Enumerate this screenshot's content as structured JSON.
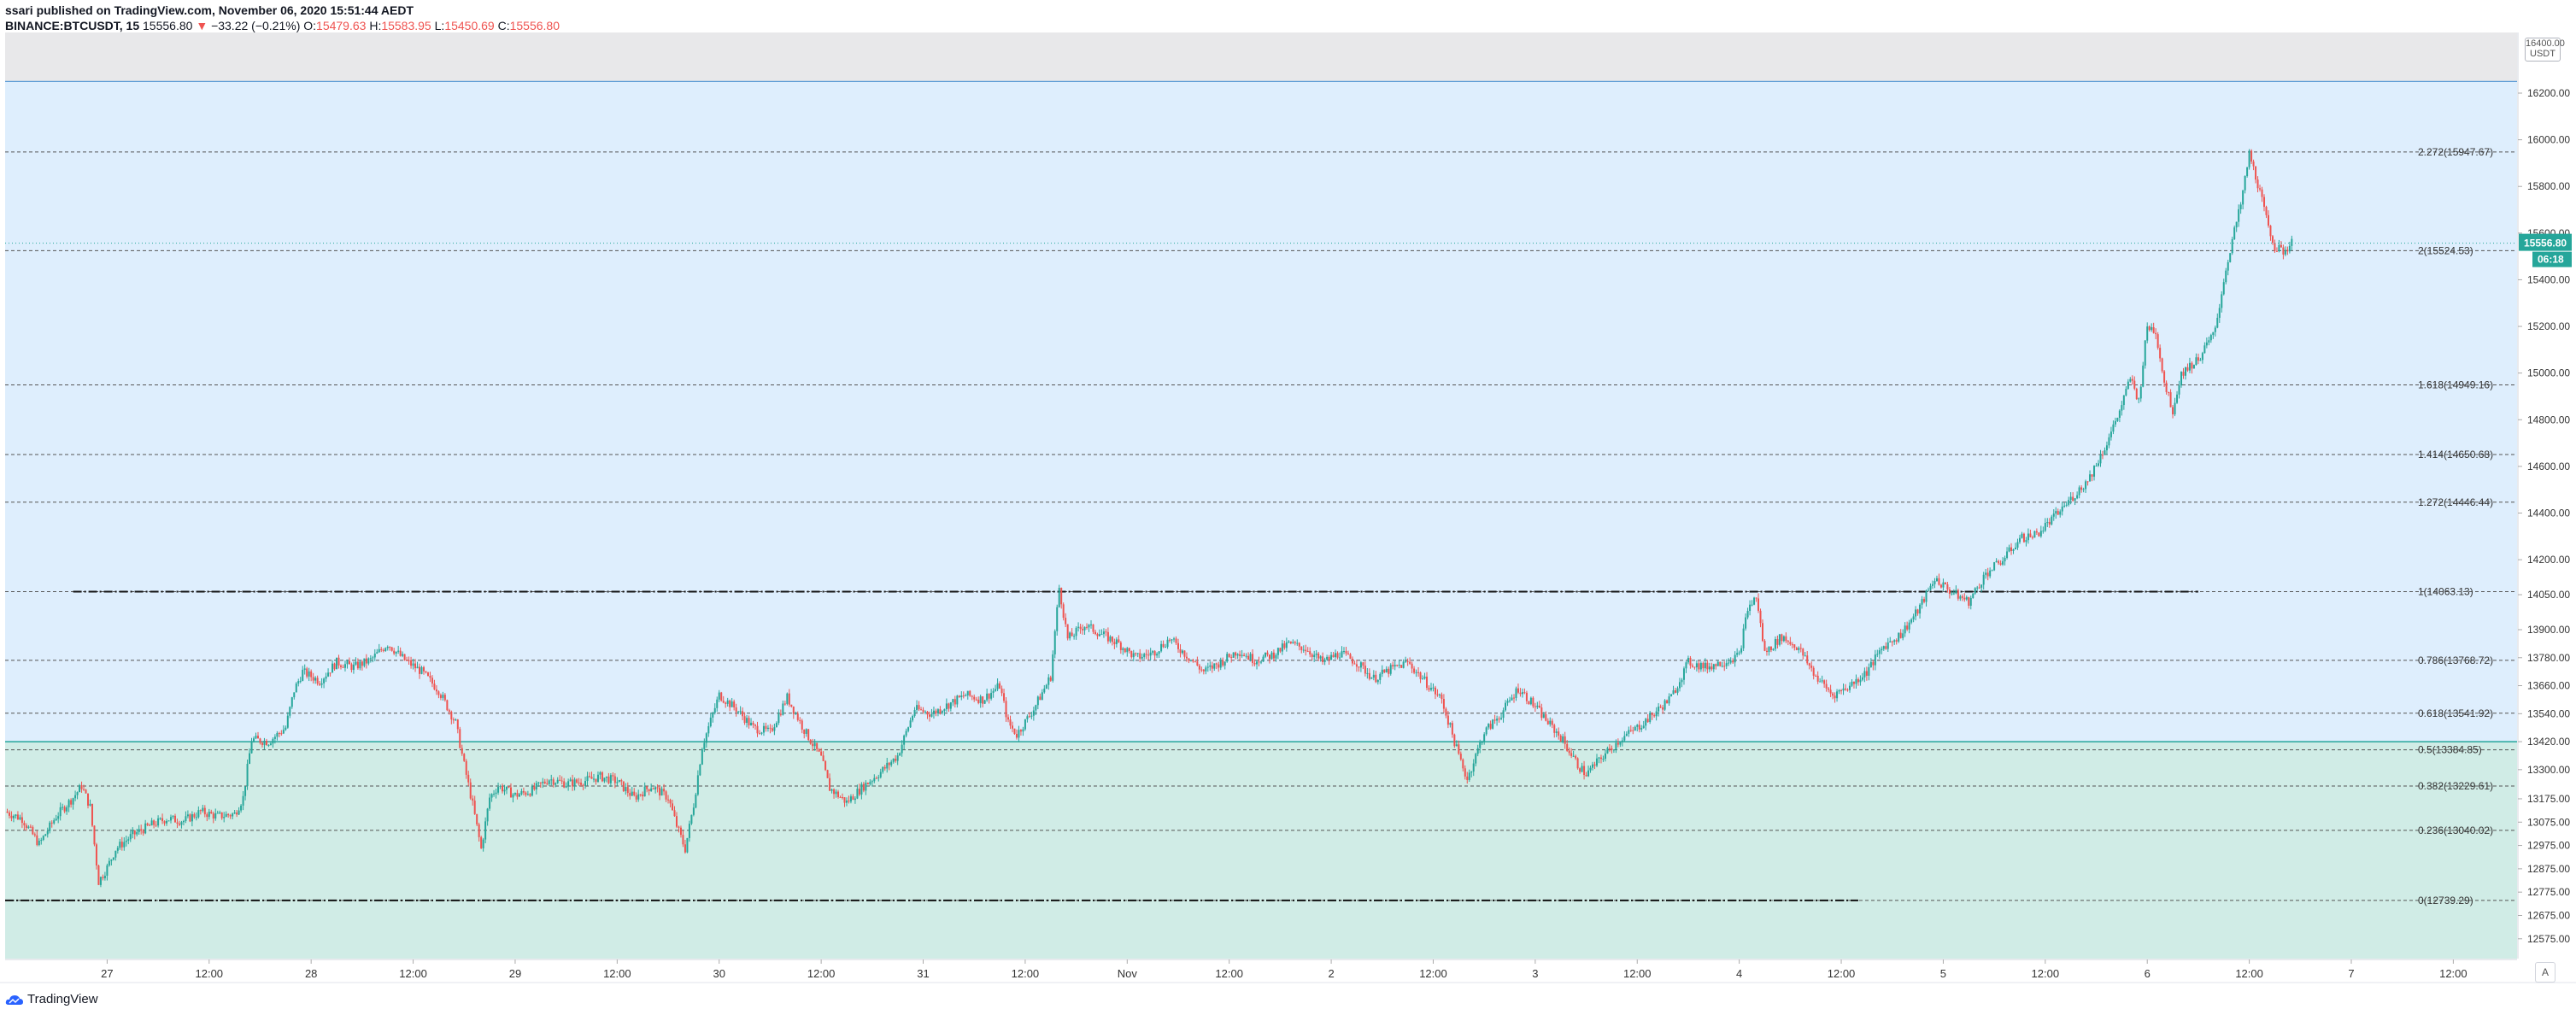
{
  "header": {
    "publisher_line": "ssari published on TradingView.com, November 06, 2020 15:51:44 AEDT",
    "symbol": "BINANCE:BTCUSDT, 15",
    "price": "15556.80",
    "change": "−33.22 (−0.21%)",
    "o_label": "O:",
    "o_value": "15479.63",
    "h_label": "H:",
    "h_value": "15583.95",
    "l_label": "L:",
    "l_value": "15450.69",
    "c_label": "C:",
    "c_value": "15556.80"
  },
  "footer": {
    "brand": "TradingView"
  },
  "axis": {
    "currency_top": "16400.00",
    "currency_bottom": "USDT",
    "auto_label": "A"
  },
  "price_tag": {
    "value": "15556.80",
    "countdown": "06:18"
  },
  "colors": {
    "up": "#26a69a",
    "down": "#ef5350",
    "upper_zone": "#deeefd",
    "lower_zone": "#d0ece6",
    "top_band": "#e8e8ea"
  },
  "chart_data": {
    "type": "candlestick",
    "title": "",
    "xlabel": "",
    "ylabel": "",
    "ylim": [
      12490,
      16460
    ],
    "y_ticks": [
      "16200.00",
      "16000.00",
      "15800.00",
      "15600.00",
      "15400.00",
      "15200.00",
      "15000.00",
      "14800.00",
      "14600.00",
      "14400.00",
      "14200.00",
      "14050.00",
      "13900.00",
      "13780.00",
      "13660.00",
      "13540.00",
      "13420.00",
      "13300.00",
      "13175.00",
      "13075.00",
      "12975.00",
      "12875.00",
      "12775.00",
      "12675.00",
      "12575.00"
    ],
    "y_tick_values": [
      16200,
      16000,
      15800,
      15600,
      15400,
      15200,
      15000,
      14800,
      14600,
      14400,
      14200,
      14050,
      13900,
      13780,
      13660,
      13540,
      13420,
      13300,
      13175,
      13075,
      12975,
      12875,
      12775,
      12675,
      12575
    ],
    "x_ticks": [
      {
        "label": "27",
        "t": 12
      },
      {
        "label": "12:00",
        "t": 24
      },
      {
        "label": "28",
        "t": 36
      },
      {
        "label": "12:00",
        "t": 48
      },
      {
        "label": "29",
        "t": 60
      },
      {
        "label": "12:00",
        "t": 72
      },
      {
        "label": "30",
        "t": 84
      },
      {
        "label": "12:00",
        "t": 96
      },
      {
        "label": "31",
        "t": 108
      },
      {
        "label": "12:00",
        "t": 120
      },
      {
        "label": "Nov",
        "t": 132
      },
      {
        "label": "12:00",
        "t": 144
      },
      {
        "label": "2",
        "t": 156
      },
      {
        "label": "12:00",
        "t": 168
      },
      {
        "label": "3",
        "t": 180
      },
      {
        "label": "12:00",
        "t": 192
      },
      {
        "label": "4",
        "t": 204
      },
      {
        "label": "12:00",
        "t": 216
      },
      {
        "label": "5",
        "t": 228
      },
      {
        "label": "12:00",
        "t": 240
      },
      {
        "label": "6",
        "t": 252
      },
      {
        "label": "12:00",
        "t": 264
      },
      {
        "label": "7",
        "t": 276
      },
      {
        "label": "12:00",
        "t": 288
      }
    ],
    "x_range_hours": [
      0,
      295.5
    ],
    "fib_levels": [
      {
        "label": "2.272(15947.67)",
        "value": 15947.67
      },
      {
        "label": "2(15524.53)",
        "value": 15524.53
      },
      {
        "label": "1.618(14949.16)",
        "value": 14949.16
      },
      {
        "label": "1.414(14650.68)",
        "value": 14650.68
      },
      {
        "label": "1.272(14446.44)",
        "value": 14446.44
      },
      {
        "label": "1(14063.13)",
        "value": 14063.13
      },
      {
        "label": "0.786(13768.72)",
        "value": 13768.72
      },
      {
        "label": "0.618(13541.92)",
        "value": 13541.92
      },
      {
        "label": "0.5(13384.85)",
        "value": 13384.85
      },
      {
        "label": "0.382(13229.61)",
        "value": 13229.61
      },
      {
        "label": "0.236(13040.02)",
        "value": 13040.02
      },
      {
        "label": "0(12739.29)",
        "value": 12739.29
      }
    ],
    "zones": {
      "upper_top": 16250,
      "split": 13420
    },
    "hand_drawn_lines": [
      {
        "value": 14063.13,
        "t_start": 8,
        "t_end": 258
      },
      {
        "value": 12739.29,
        "t_start": 0,
        "t_end": 218
      }
    ],
    "price_path": [
      [
        0,
        13120
      ],
      [
        2,
        13090
      ],
      [
        4,
        12980
      ],
      [
        6,
        13100
      ],
      [
        8,
        13180
      ],
      [
        9,
        13230
      ],
      [
        10,
        13140
      ],
      [
        11,
        12820
      ],
      [
        12,
        12880
      ],
      [
        13,
        12960
      ],
      [
        15,
        13020
      ],
      [
        17,
        13060
      ],
      [
        19,
        13090
      ],
      [
        21,
        13080
      ],
      [
        23,
        13120
      ],
      [
        25,
        13100
      ],
      [
        27,
        13110
      ],
      [
        28,
        13180
      ],
      [
        29,
        13430
      ],
      [
        31,
        13420
      ],
      [
        33,
        13480
      ],
      [
        34,
        13640
      ],
      [
        35,
        13720
      ],
      [
        37,
        13680
      ],
      [
        39,
        13760
      ],
      [
        41,
        13740
      ],
      [
        43,
        13770
      ],
      [
        45,
        13840
      ],
      [
        47,
        13770
      ],
      [
        49,
        13720
      ],
      [
        51,
        13640
      ],
      [
        53,
        13500
      ],
      [
        54,
        13320
      ],
      [
        55,
        13150
      ],
      [
        56,
        12960
      ],
      [
        57,
        13180
      ],
      [
        58,
        13230
      ],
      [
        60,
        13190
      ],
      [
        62,
        13210
      ],
      [
        64,
        13260
      ],
      [
        66,
        13240
      ],
      [
        68,
        13250
      ],
      [
        70,
        13270
      ],
      [
        72,
        13250
      ],
      [
        74,
        13180
      ],
      [
        76,
        13230
      ],
      [
        78,
        13180
      ],
      [
        79,
        13060
      ],
      [
        80,
        12960
      ],
      [
        81,
        13150
      ],
      [
        82,
        13400
      ],
      [
        84,
        13620
      ],
      [
        86,
        13560
      ],
      [
        88,
        13480
      ],
      [
        90,
        13460
      ],
      [
        92,
        13610
      ],
      [
        94,
        13470
      ],
      [
        96,
        13350
      ],
      [
        97,
        13220
      ],
      [
        99,
        13160
      ],
      [
        101,
        13230
      ],
      [
        103,
        13290
      ],
      [
        105,
        13360
      ],
      [
        107,
        13560
      ],
      [
        109,
        13540
      ],
      [
        111,
        13580
      ],
      [
        113,
        13620
      ],
      [
        115,
        13600
      ],
      [
        117,
        13660
      ],
      [
        118,
        13500
      ],
      [
        119,
        13450
      ],
      [
        121,
        13560
      ],
      [
        123,
        13700
      ],
      [
        124,
        14080
      ],
      [
        125,
        13860
      ],
      [
        127,
        13920
      ],
      [
        129,
        13880
      ],
      [
        131,
        13840
      ],
      [
        133,
        13780
      ],
      [
        135,
        13800
      ],
      [
        137,
        13860
      ],
      [
        139,
        13790
      ],
      [
        141,
        13720
      ],
      [
        143,
        13760
      ],
      [
        145,
        13810
      ],
      [
        147,
        13770
      ],
      [
        149,
        13790
      ],
      [
        151,
        13840
      ],
      [
        153,
        13820
      ],
      [
        155,
        13760
      ],
      [
        157,
        13800
      ],
      [
        159,
        13760
      ],
      [
        161,
        13690
      ],
      [
        163,
        13730
      ],
      [
        165,
        13760
      ],
      [
        167,
        13680
      ],
      [
        169,
        13600
      ],
      [
        170,
        13480
      ],
      [
        171,
        13360
      ],
      [
        172,
        13260
      ],
      [
        174,
        13460
      ],
      [
        176,
        13540
      ],
      [
        178,
        13650
      ],
      [
        180,
        13570
      ],
      [
        182,
        13480
      ],
      [
        183,
        13440
      ],
      [
        185,
        13320
      ],
      [
        186,
        13280
      ],
      [
        188,
        13360
      ],
      [
        190,
        13430
      ],
      [
        192,
        13480
      ],
      [
        194,
        13540
      ],
      [
        196,
        13610
      ],
      [
        198,
        13760
      ],
      [
        200,
        13740
      ],
      [
        202,
        13760
      ],
      [
        204,
        13790
      ],
      [
        205,
        13990
      ],
      [
        206,
        14040
      ],
      [
        207,
        13800
      ],
      [
        209,
        13870
      ],
      [
        211,
        13820
      ],
      [
        213,
        13700
      ],
      [
        215,
        13620
      ],
      [
        217,
        13660
      ],
      [
        219,
        13720
      ],
      [
        221,
        13830
      ],
      [
        223,
        13880
      ],
      [
        225,
        13980
      ],
      [
        227,
        14120
      ],
      [
        229,
        14060
      ],
      [
        231,
        14020
      ],
      [
        233,
        14140
      ],
      [
        235,
        14200
      ],
      [
        237,
        14290
      ],
      [
        239,
        14310
      ],
      [
        241,
        14380
      ],
      [
        243,
        14460
      ],
      [
        245,
        14540
      ],
      [
        247,
        14680
      ],
      [
        249,
        14860
      ],
      [
        250,
        14980
      ],
      [
        251,
        14880
      ],
      [
        252,
        15200
      ],
      [
        253,
        15180
      ],
      [
        254,
        14960
      ],
      [
        255,
        14840
      ],
      [
        256,
        15000
      ],
      [
        258,
        15060
      ],
      [
        260,
        15180
      ],
      [
        261,
        15400
      ],
      [
        262,
        15570
      ],
      [
        263,
        15720
      ],
      [
        264,
        15940
      ],
      [
        265,
        15810
      ],
      [
        266,
        15660
      ],
      [
        267,
        15540
      ],
      [
        268,
        15520
      ],
      [
        269,
        15556.8
      ]
    ]
  }
}
